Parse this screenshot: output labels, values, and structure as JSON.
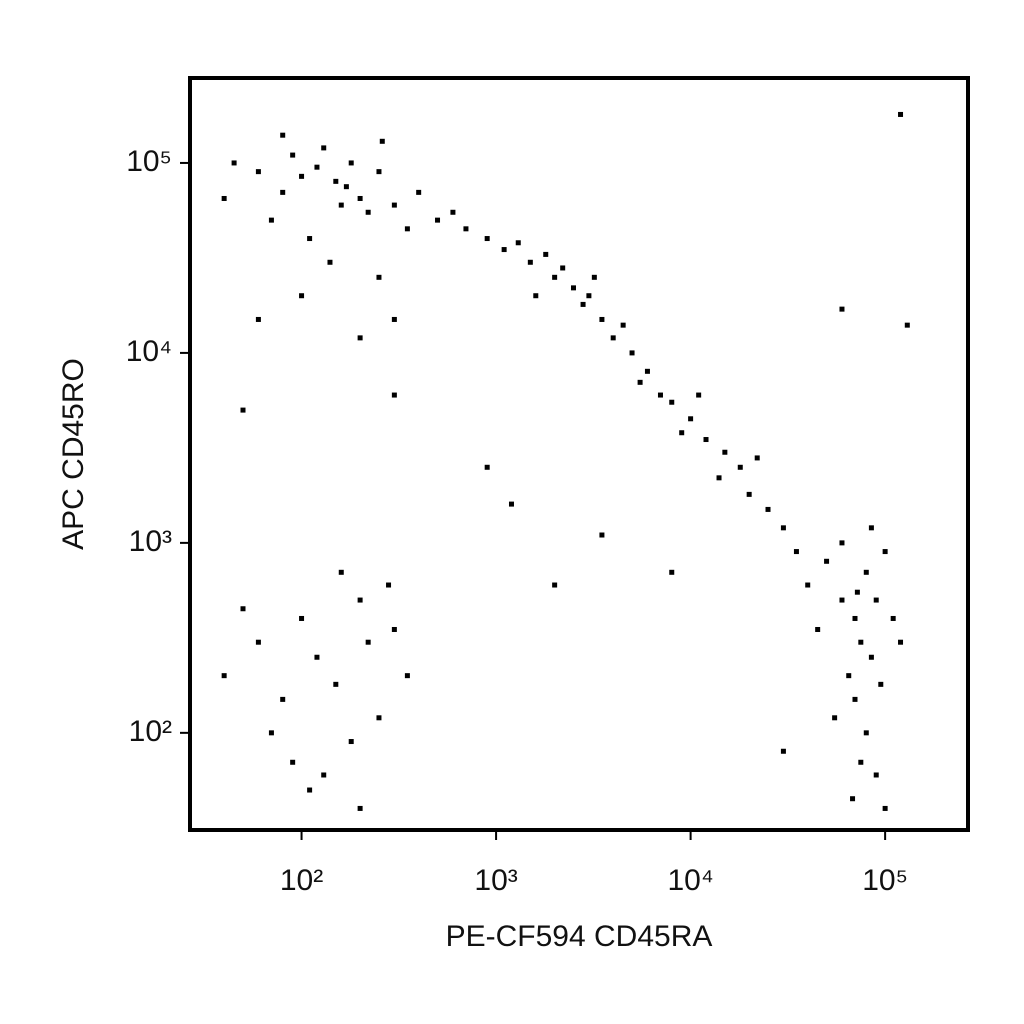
{
  "chart_data": {
    "type": "scatter",
    "x_label": "PE-CF594 CD45RA",
    "y_label": "APC CD45RO",
    "x_log": true,
    "y_log": true,
    "xlim": [
      26.7,
      266700
    ],
    "ylim": [
      30.8,
      280000
    ],
    "xticks": [
      {
        "value": 100,
        "label": "10²"
      },
      {
        "value": 1000,
        "label": "10³"
      },
      {
        "value": 10000,
        "label": "10⁴"
      },
      {
        "value": 100000,
        "label": "10⁵"
      }
    ],
    "yticks": [
      {
        "value": 100,
        "label": "10²"
      },
      {
        "value": 1000,
        "label": "10³"
      },
      {
        "value": 10000,
        "label": "10⁴"
      },
      {
        "value": 100000,
        "label": "10⁵"
      }
    ],
    "color": "#000000",
    "x": [
      60,
      80,
      100,
      120,
      150,
      170,
      200,
      250,
      300,
      90,
      130,
      180,
      220,
      70,
      110,
      400,
      350,
      160,
      500,
      600,
      40,
      45,
      140,
      250,
      100,
      60,
      300,
      200,
      80,
      260,
      700,
      900,
      1100,
      1300,
      1500,
      1800,
      2000,
      2500,
      3000,
      3500,
      4000,
      5000,
      6000,
      7000,
      8000,
      10000,
      12000,
      15000,
      18000,
      20000,
      25000,
      30000,
      2200,
      2800,
      4500,
      5500,
      9000,
      11000,
      14000,
      22000,
      1600,
      3200,
      40000,
      50000,
      60000,
      70000,
      75000,
      80000,
      85000,
      90000,
      65000,
      100000,
      110000,
      70000,
      80000,
      75000,
      90000,
      60000,
      45000,
      55000,
      95000,
      120000,
      85000,
      72000,
      35000,
      30000,
      68000,
      100000,
      40,
      60,
      80,
      100,
      120,
      150,
      200,
      250,
      300,
      350,
      70,
      90,
      130,
      180,
      220,
      50,
      160,
      280,
      110,
      200,
      120000,
      60000,
      130000,
      1200,
      3500,
      2000,
      8000,
      300,
      50,
      900
    ],
    "y": [
      90000,
      70000,
      85000,
      95000,
      80000,
      75000,
      65000,
      90000,
      60000,
      110000,
      120000,
      100000,
      55000,
      50000,
      40000,
      70000,
      45000,
      60000,
      50000,
      55000,
      65000,
      100000,
      30000,
      25000,
      20000,
      15000,
      15000,
      12000,
      140000,
      130000,
      45000,
      40000,
      35000,
      38000,
      30000,
      33000,
      25000,
      22000,
      20000,
      15000,
      12000,
      10000,
      8000,
      6000,
      5500,
      4500,
      3500,
      3000,
      2500,
      1800,
      1500,
      1200,
      28000,
      18000,
      14000,
      7000,
      3800,
      6000,
      2200,
      2800,
      20000,
      25000,
      600,
      800,
      500,
      400,
      300,
      700,
      250,
      500,
      200,
      900,
      400,
      150,
      100,
      70,
      60,
      1000,
      350,
      120,
      180,
      300,
      1200,
      550,
      900,
      80,
      45,
      40,
      200,
      300,
      150,
      400,
      250,
      180,
      500,
      120,
      350,
      200,
      100,
      70,
      60,
      90,
      300,
      450,
      700,
      600,
      50,
      40,
      180000,
      17000,
      14000,
      1600,
      1100,
      600,
      700,
      6000,
      5000,
      2500
    ]
  }
}
